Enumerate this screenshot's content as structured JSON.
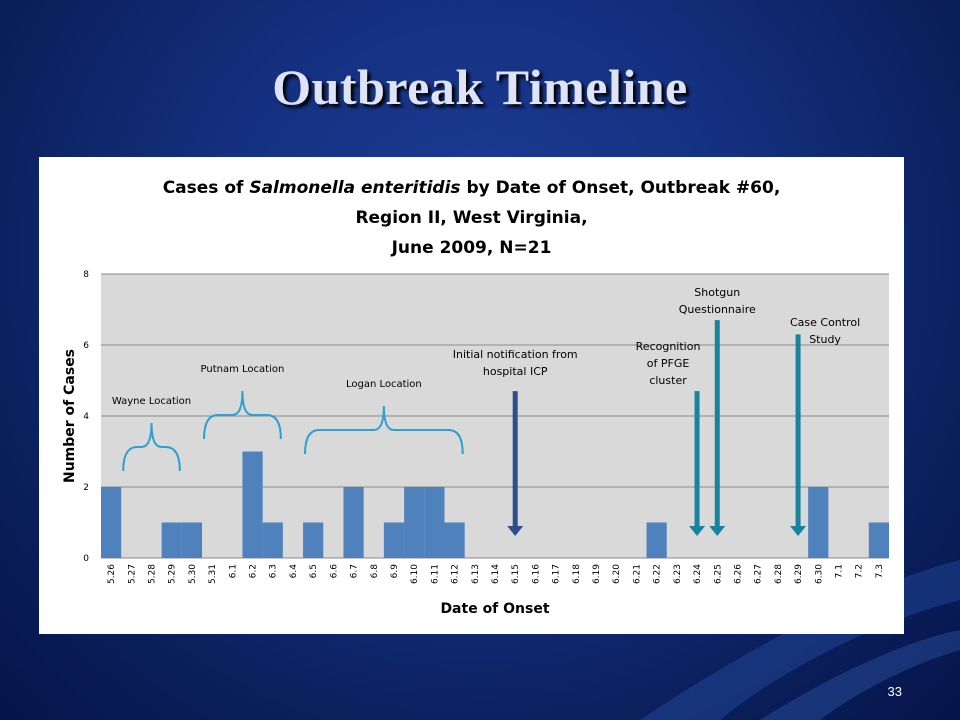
{
  "slide": {
    "title": "Outbreak Timeline",
    "page_number": "33"
  },
  "colors": {
    "background": "#14307f",
    "bar": "#4f81bd",
    "plot_area": "#d9d9d9",
    "bracket": "#2e9fd3",
    "arrow_dark": "#2e4f8c",
    "arrow_teal": "#17839c"
  },
  "chart_data": {
    "type": "bar",
    "title_parts": {
      "line1_pre": "Cases of ",
      "line1_italic": "Salmonella enteritidis",
      "line1_post": " by Date of Onset, Outbreak #60,",
      "line2": "Region II, West Virginia,",
      "line3": "June 2009, N=21"
    },
    "xlabel": "Date of Onset",
    "ylabel": "Number of Cases",
    "ylim": [
      0,
      8
    ],
    "yticks": [
      "0",
      "2",
      "4",
      "6",
      "8"
    ],
    "grid": true,
    "categories": [
      "5.26",
      "5.27",
      "5.28",
      "5.29",
      "5.30",
      "5.31",
      "6.1",
      "6.2",
      "6.3",
      "6.4",
      "6.5",
      "6.6",
      "6.7",
      "6.8",
      "6.9",
      "6.10",
      "6.11",
      "6.12",
      "6.13",
      "6.14",
      "6.15",
      "6.16",
      "6.17",
      "6.18",
      "6.19",
      "6.20",
      "6.21",
      "6.22",
      "6.23",
      "6.24",
      "6.25",
      "6.26",
      "6.27",
      "6.28",
      "6.29",
      "6.30",
      "7.1",
      "7.2",
      "7.3"
    ],
    "values": [
      2,
      0,
      0,
      1,
      1,
      0,
      0,
      3,
      1,
      0,
      1,
      0,
      2,
      0,
      1,
      2,
      2,
      1,
      0,
      0,
      0,
      0,
      0,
      0,
      0,
      0,
      0,
      1,
      0,
      0,
      0,
      0,
      0,
      0,
      0,
      2,
      0,
      0,
      1
    ],
    "brackets": [
      {
        "label": "Wayne Location",
        "from": "5.27",
        "to": "5.29"
      },
      {
        "label": "Putnam Location",
        "from": "5.31",
        "to": "6.3"
      },
      {
        "label": "Logan Location",
        "from": "6.5",
        "to": "6.12"
      }
    ],
    "annotations": [
      {
        "lines": [
          "Initial notification from",
          "hospital ICP"
        ],
        "date": "6.15",
        "top": 4.7
      },
      {
        "lines": [
          "Recognition",
          "of PFGE",
          "cluster"
        ],
        "date": "6.24",
        "top": 4.7
      },
      {
        "lines": [
          "Shotgun",
          "Questionnaire"
        ],
        "date": "6.25",
        "top": 6.7
      },
      {
        "lines": [
          "Case Control",
          "Study"
        ],
        "date": "6.29",
        "top": 6.3
      }
    ]
  }
}
